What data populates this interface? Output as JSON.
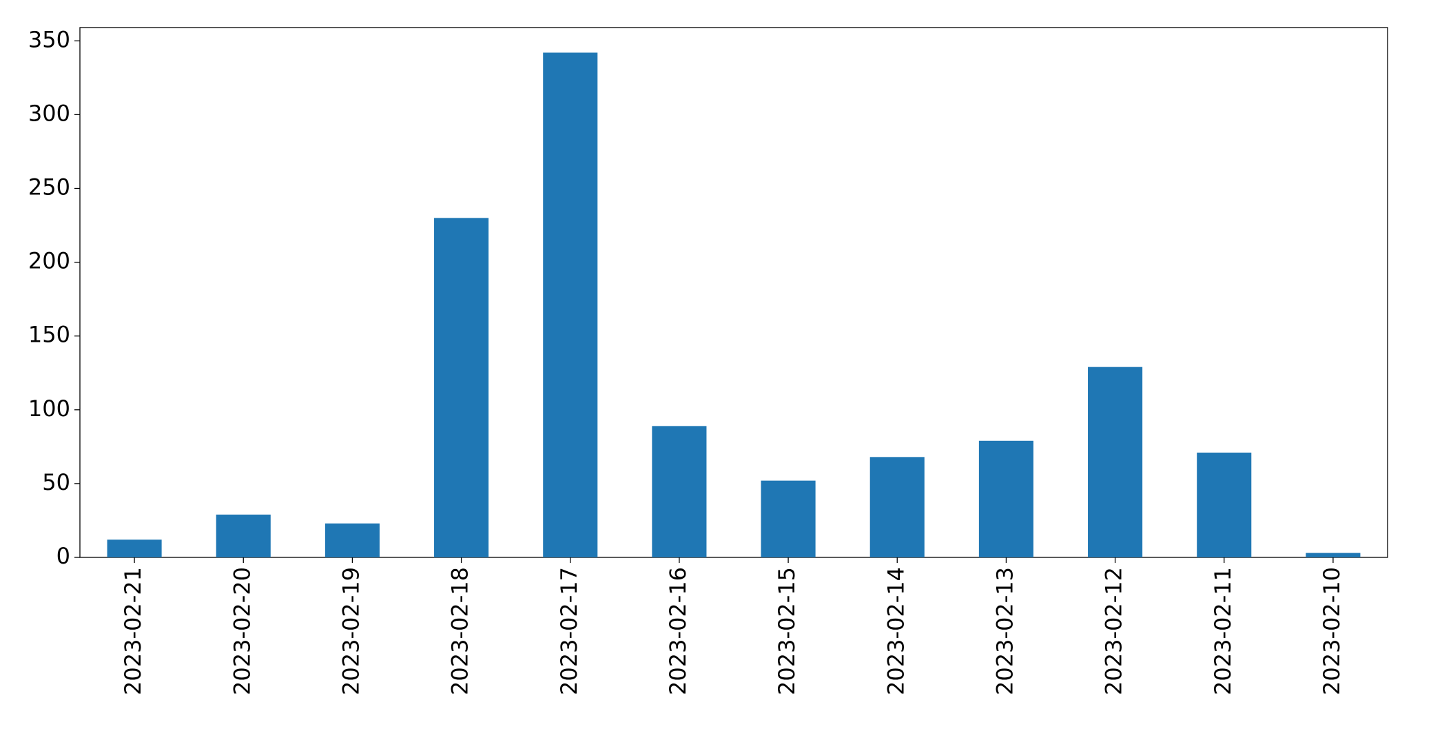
{
  "chart_data": {
    "type": "bar",
    "categories": [
      "2023-02-21",
      "2023-02-20",
      "2023-02-19",
      "2023-02-18",
      "2023-02-17",
      "2023-02-16",
      "2023-02-15",
      "2023-02-14",
      "2023-02-13",
      "2023-02-12",
      "2023-02-11",
      "2023-02-10"
    ],
    "values": [
      12,
      29,
      23,
      230,
      342,
      89,
      52,
      68,
      79,
      129,
      71,
      3
    ],
    "color": "#1f77b4",
    "ylim": [
      0,
      359
    ],
    "yticks": [
      0,
      50,
      100,
      150,
      200,
      250,
      300,
      350
    ],
    "grid": false
  }
}
